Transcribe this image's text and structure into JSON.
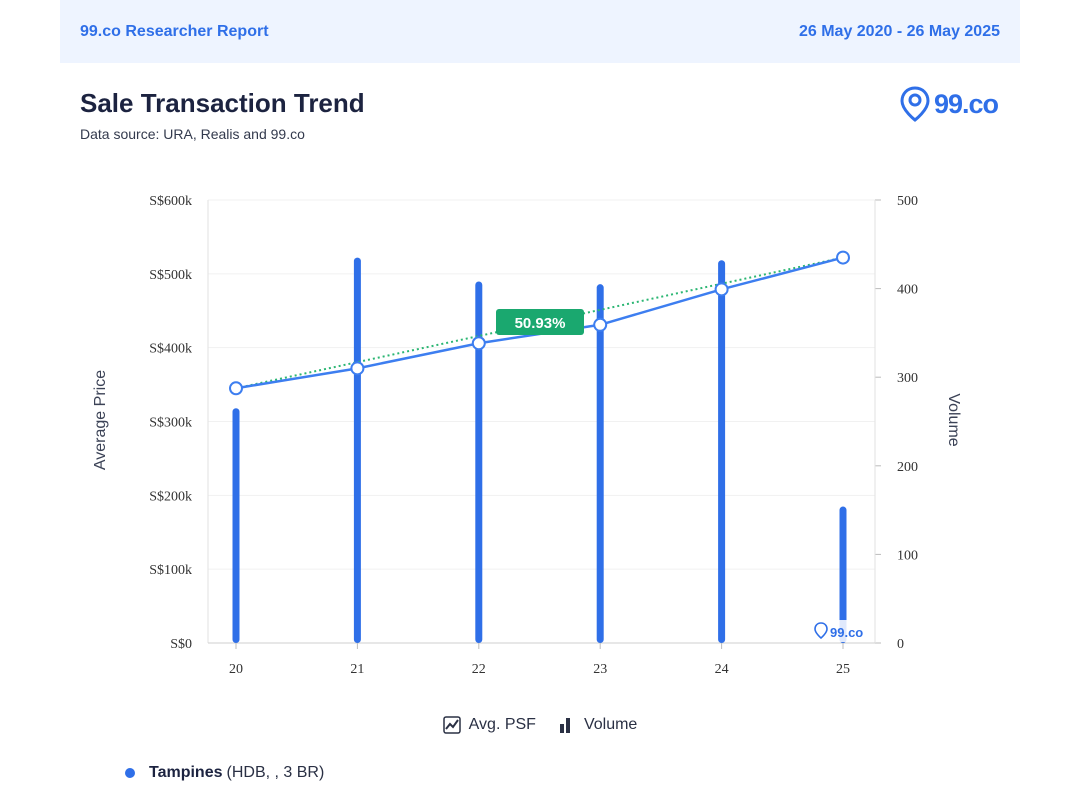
{
  "header": {
    "report_title": "99.co Researcher Report",
    "date_range": "26 May 2020 - 26 May 2025"
  },
  "title": "Sale Transaction Trend",
  "subtitle": "Data source: URA, Realis and 99.co",
  "logo": {
    "text": "99.co",
    "icon": "location-pin-icon"
  },
  "legend": [
    {
      "label": "Avg. PSF",
      "icon": "line-chart-icon"
    },
    {
      "label": "Volume",
      "icon": "bar-chart-icon"
    }
  ],
  "footer": {
    "name": "Tampines",
    "detail": "(HDB, , 3 BR)",
    "color": "#2f6fe8"
  },
  "chart_data": {
    "type": "bar",
    "categories": [
      "20",
      "21",
      "22",
      "23",
      "24",
      "25"
    ],
    "xlabel": "",
    "ylabel": "Average Price",
    "y2label": "Volume",
    "ylim": [
      0,
      600000
    ],
    "y2lim": [
      0,
      500
    ],
    "y_ticks": [
      "S$0",
      "S$100k",
      "S$200k",
      "S$300k",
      "S$400k",
      "S$500k",
      "S$600k"
    ],
    "y2_ticks": [
      "0",
      "100",
      "200",
      "300",
      "400",
      "500"
    ],
    "series": [
      {
        "name": "Volume",
        "type": "bar",
        "axis": "right",
        "values": [
          265,
          435,
          408,
          405,
          432,
          154
        ],
        "color": "#2f6fe8"
      },
      {
        "name": "Avg. PSF",
        "type": "line",
        "axis": "left",
        "values": [
          345000,
          372000,
          406000,
          431000,
          479000,
          522000
        ],
        "color": "#3d7ef0"
      }
    ],
    "trendline": {
      "style": "dotted",
      "color": "#2bb673"
    },
    "annotation": {
      "text": "50.93%",
      "color": "#1aa86f"
    },
    "watermark": "99.co",
    "grid": true,
    "legend_position": "bottom"
  }
}
